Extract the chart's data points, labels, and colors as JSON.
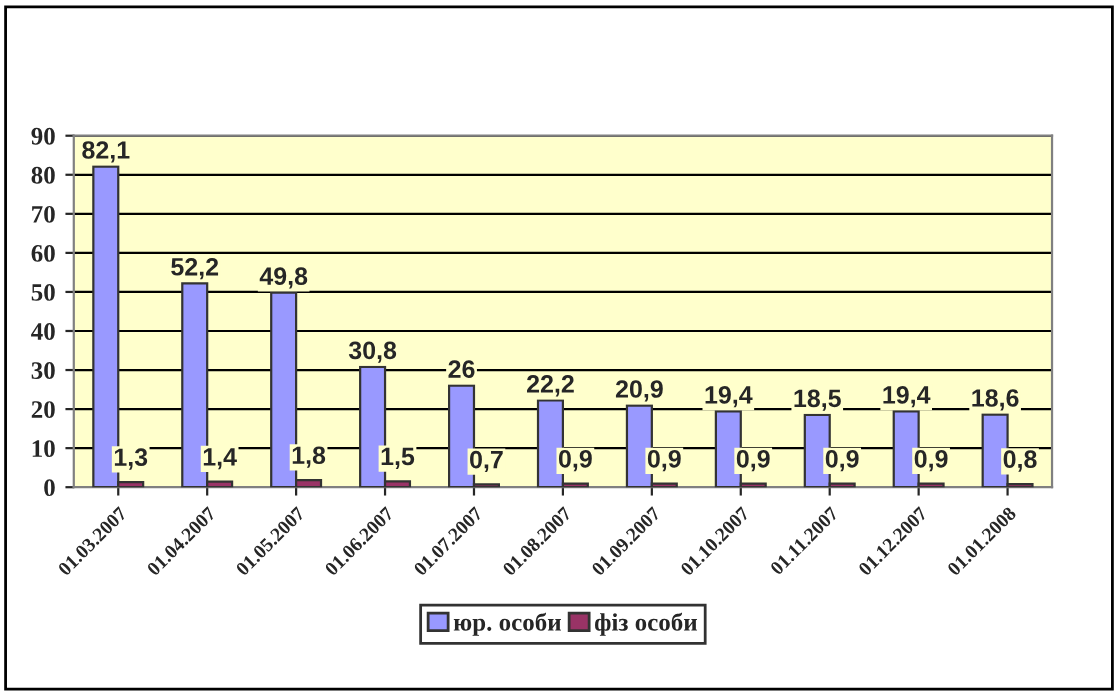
{
  "chart_data": {
    "type": "bar",
    "categories": [
      "01.03.2007",
      "01.04.2007",
      "01.05.2007",
      "01.06.2007",
      "01.07.2007",
      "01.08.2007",
      "01.09.2007",
      "01.10.2007",
      "01.11.2007",
      "01.12.2007",
      "01.01.2008"
    ],
    "series": [
      {
        "name": "юр. особи",
        "color": "#9999ff",
        "values": [
          82.1,
          52.2,
          49.8,
          30.8,
          26,
          22.2,
          20.9,
          19.4,
          18.5,
          19.4,
          18.6
        ],
        "value_labels": [
          "82,1",
          "52,2",
          "49,8",
          "30,8",
          "26",
          "22,2",
          "20,9",
          "19,4",
          "18,5",
          "19,4",
          "18,6"
        ]
      },
      {
        "name": "фіз особи",
        "color": "#993366",
        "values": [
          1.3,
          1.4,
          1.8,
          1.5,
          0.7,
          0.9,
          0.9,
          0.9,
          0.9,
          0.9,
          0.8
        ],
        "value_labels": [
          "1,3",
          "1,4",
          "1,8",
          "1,5",
          "0,7",
          "0,9",
          "0,9",
          "0,9",
          "0,9",
          "0,9",
          "0,8"
        ]
      }
    ],
    "ylim": [
      0,
      90
    ],
    "yticks": [
      0,
      10,
      20,
      30,
      40,
      50,
      60,
      70,
      80,
      90
    ],
    "grid": "y",
    "legend": "bottom"
  }
}
